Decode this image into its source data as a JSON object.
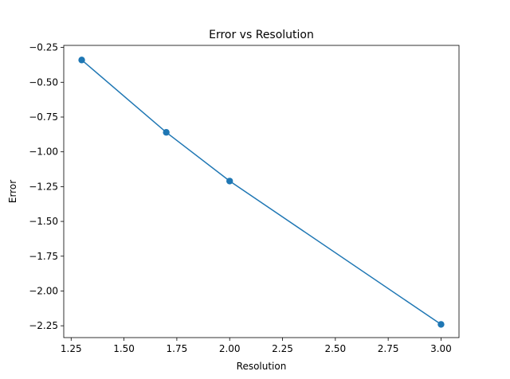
{
  "chart_data": {
    "type": "line",
    "title": "Error vs Resolution",
    "xlabel": "Resolution",
    "ylabel": "Error",
    "xlim": [
      1.215,
      3.085
    ],
    "ylim": [
      -2.335,
      -0.235
    ],
    "grid": false,
    "x_ticks": [
      1.25,
      1.5,
      1.75,
      2.0,
      2.25,
      2.5,
      2.75,
      3.0
    ],
    "x_tick_labels": [
      "1.25",
      "1.50",
      "1.75",
      "2.00",
      "2.25",
      "2.50",
      "2.75",
      "3.00"
    ],
    "y_ticks": [
      -0.25,
      -0.5,
      -0.75,
      -1.0,
      -1.25,
      -1.5,
      -1.75,
      -2.0,
      -2.25
    ],
    "y_tick_labels": [
      "−0.25",
      "−0.50",
      "−0.75",
      "−1.00",
      "−1.25",
      "−1.50",
      "−1.75",
      "−2.00",
      "−2.25"
    ],
    "series": [
      {
        "color": "#1f77b4",
        "marker": "circle",
        "x": [
          1.3,
          1.7,
          2.0,
          3.0
        ],
        "y": [
          -0.34,
          -0.86,
          -1.21,
          -2.24
        ]
      }
    ]
  }
}
